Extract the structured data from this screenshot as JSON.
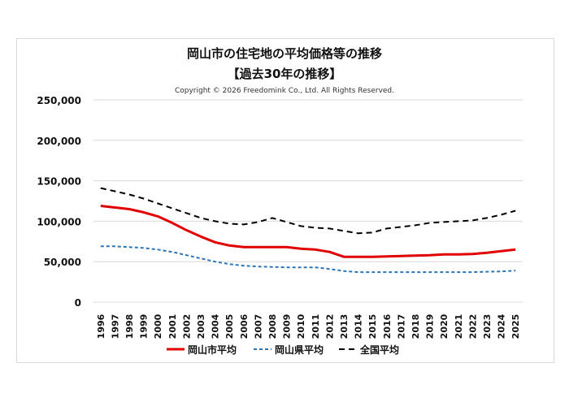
{
  "chart_data": {
    "type": "line",
    "title": "岡山市の住宅地の平均価格等の推移",
    "subtitle": "【過去30年の推移】",
    "copyright": "Copyright © 2026 Freedomink Co., Ltd. All Rights Reserved.",
    "x": [
      1996,
      1997,
      1998,
      1999,
      2000,
      2001,
      2002,
      2003,
      2004,
      2005,
      2006,
      2007,
      2008,
      2009,
      2010,
      2011,
      2012,
      2013,
      2014,
      2015,
      2016,
      2017,
      2018,
      2019,
      2020,
      2021,
      2022,
      2023,
      2024,
      2025
    ],
    "ylim": [
      0,
      250000
    ],
    "yticks": [
      "0",
      "50,000",
      "100,000",
      "150,000",
      "200,000",
      "250,000"
    ],
    "grid": true,
    "legend": "bottom",
    "series": [
      {
        "name": "岡山市平均",
        "color": "#e00000",
        "dash": "solid",
        "values": [
          119000,
          117000,
          115000,
          111000,
          106000,
          98000,
          89000,
          81000,
          74000,
          70000,
          68000,
          68000,
          68000,
          68000,
          66000,
          65000,
          62000,
          56000,
          56000,
          56000,
          56500,
          57000,
          57500,
          58000,
          59000,
          59000,
          59500,
          61000,
          63000,
          65000
        ]
      },
      {
        "name": "岡山県平均",
        "color": "#2e75b6",
        "dash": "short",
        "values": [
          69000,
          69000,
          68000,
          67000,
          65000,
          62000,
          58000,
          54000,
          50000,
          47000,
          45000,
          44000,
          43500,
          43000,
          43000,
          43000,
          41000,
          38500,
          37000,
          37000,
          37000,
          37000,
          37000,
          37000,
          37000,
          37000,
          37000,
          37500,
          38000,
          39000
        ]
      },
      {
        "name": "全国平均",
        "color": "#000000",
        "dash": "long",
        "values": [
          141000,
          137000,
          133000,
          128000,
          122000,
          116000,
          110000,
          104000,
          100000,
          97000,
          96000,
          99000,
          104000,
          99000,
          94000,
          92000,
          91000,
          88000,
          85000,
          86000,
          91000,
          93000,
          95000,
          98000,
          99000,
          100000,
          101000,
          104000,
          108000,
          113000
        ]
      }
    ]
  }
}
